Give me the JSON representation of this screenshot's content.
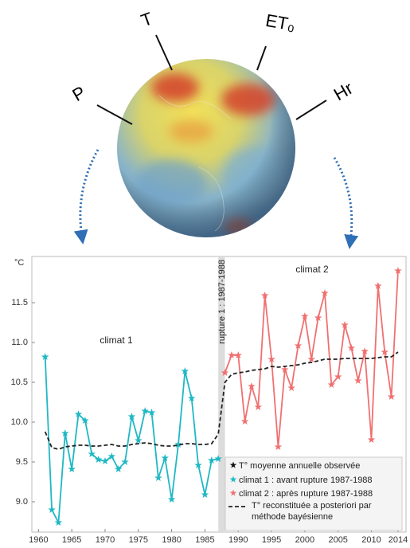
{
  "figure": {
    "globe_labels": [
      "P",
      "T",
      "ET₀",
      "Hr"
    ]
  },
  "chart_data": {
    "type": "line",
    "y_unit": "°C",
    "annotations": [
      "climat 1",
      "climat 2",
      "rupture 1 : 1987-1988"
    ],
    "rupture_band": [
      1987,
      1988
    ],
    "legend_title": "T° moyenne annuelle observée",
    "x": [
      1961,
      1962,
      1963,
      1964,
      1965,
      1966,
      1967,
      1968,
      1969,
      1970,
      1971,
      1972,
      1973,
      1974,
      1975,
      1976,
      1977,
      1978,
      1979,
      1980,
      1981,
      1982,
      1983,
      1984,
      1985,
      1986,
      1987,
      1988,
      1989,
      1990,
      1991,
      1992,
      1993,
      1994,
      1995,
      1996,
      1997,
      1998,
      1999,
      2000,
      2001,
      2002,
      2003,
      2004,
      2005,
      2006,
      2007,
      2008,
      2009,
      2010,
      2011,
      2012,
      2013,
      2014
    ],
    "series": [
      {
        "name": "climat 1 : avant rupture 1987-1988",
        "color": "#1fb8c4",
        "marker": "star",
        "values": [
          10.82,
          8.9,
          8.74,
          9.86,
          9.41,
          10.1,
          10.02,
          9.6,
          9.53,
          9.51,
          9.57,
          9.41,
          9.5,
          10.07,
          9.77,
          10.14,
          10.12,
          9.3,
          9.55,
          9.03,
          9.72,
          10.64,
          10.3,
          9.46,
          9.09,
          9.52,
          9.54,
          null,
          null,
          null,
          null,
          null,
          null,
          null,
          null,
          null,
          null,
          null,
          null,
          null,
          null,
          null,
          null,
          null,
          null,
          null,
          null,
          null,
          null,
          null,
          null,
          null,
          null,
          null
        ]
      },
      {
        "name": "climat 2 : après rupture 1987-1988",
        "color": "#f07070",
        "marker": "star",
        "values": [
          null,
          null,
          null,
          null,
          null,
          null,
          null,
          null,
          null,
          null,
          null,
          null,
          null,
          null,
          null,
          null,
          null,
          null,
          null,
          null,
          null,
          null,
          null,
          null,
          null,
          null,
          null,
          10.62,
          10.84,
          10.84,
          10.01,
          10.45,
          10.19,
          11.59,
          10.79,
          9.69,
          10.66,
          10.43,
          10.96,
          11.33,
          10.79,
          11.31,
          11.62,
          10.47,
          10.57,
          11.22,
          10.93,
          10.52,
          10.89,
          9.78,
          11.71,
          10.88,
          10.32,
          11.9
        ]
      },
      {
        "name": "T° reconstituée a posteriori par méthode bayésienne",
        "color": "#222222",
        "dashed": true,
        "values": [
          9.88,
          9.68,
          9.66,
          9.69,
          9.7,
          9.71,
          9.71,
          9.7,
          9.7,
          9.71,
          9.72,
          9.7,
          9.7,
          9.72,
          9.73,
          9.74,
          9.73,
          9.71,
          9.7,
          9.7,
          9.71,
          9.73,
          9.73,
          9.72,
          9.72,
          9.73,
          9.85,
          10.5,
          10.6,
          10.62,
          10.63,
          10.65,
          10.66,
          10.67,
          10.7,
          10.69,
          10.7,
          10.71,
          10.72,
          10.74,
          10.75,
          10.77,
          10.79,
          10.79,
          10.79,
          10.8,
          10.8,
          10.8,
          10.8,
          10.8,
          10.81,
          10.82,
          10.82,
          10.88
        ]
      }
    ],
    "xlim": [
      1959,
      2015.2
    ],
    "ylim": [
      8.62,
      12.08
    ],
    "xticks": [
      1960,
      1965,
      1970,
      1975,
      1980,
      1985,
      1990,
      1995,
      2000,
      2005,
      2010,
      2014
    ],
    "yticks": [
      {
        "value": 9,
        "label": "9.0"
      },
      {
        "value": 9.5,
        "label": "9.5"
      },
      {
        "value": 10,
        "label": "10.0"
      },
      {
        "value": 10.5,
        "label": "10.5"
      },
      {
        "value": 11,
        "label": "11.0"
      },
      {
        "value": 11.5,
        "label": "11.5"
      }
    ]
  }
}
